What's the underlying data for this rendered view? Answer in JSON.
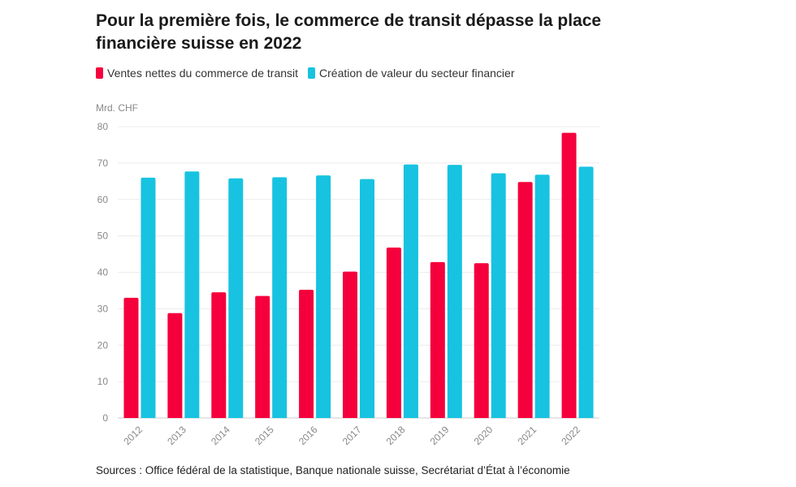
{
  "chart_data": {
    "type": "bar",
    "title": "Pour la première fois, le commerce de transit dépasse la place financière suisse en 2022",
    "unit_label": "Mrd. CHF",
    "categories": [
      "2012",
      "2013",
      "2014",
      "2015",
      "2016",
      "2017",
      "2018",
      "2019",
      "2020",
      "2021",
      "2022"
    ],
    "series": [
      {
        "name": "Ventes nettes du commerce de transit",
        "color": "#f5003c",
        "values": [
          33.0,
          28.8,
          34.5,
          33.5,
          35.2,
          40.2,
          46.8,
          42.8,
          42.5,
          64.8,
          78.3
        ]
      },
      {
        "name": "Création de valeur du secteur financier",
        "color": "#17c3e0",
        "values": [
          66.0,
          67.7,
          65.8,
          66.1,
          66.6,
          65.6,
          69.6,
          69.5,
          67.2,
          66.8,
          69.0
        ]
      }
    ],
    "ylim": [
      0,
      80
    ],
    "yticks": [
      0,
      10,
      20,
      30,
      40,
      50,
      60,
      70,
      80
    ],
    "grid": true,
    "legend_position": "top-left"
  },
  "source": "Sources : Office fédéral de la statistique, Banque nationale suisse, Secrétariat d’État à l’économie"
}
